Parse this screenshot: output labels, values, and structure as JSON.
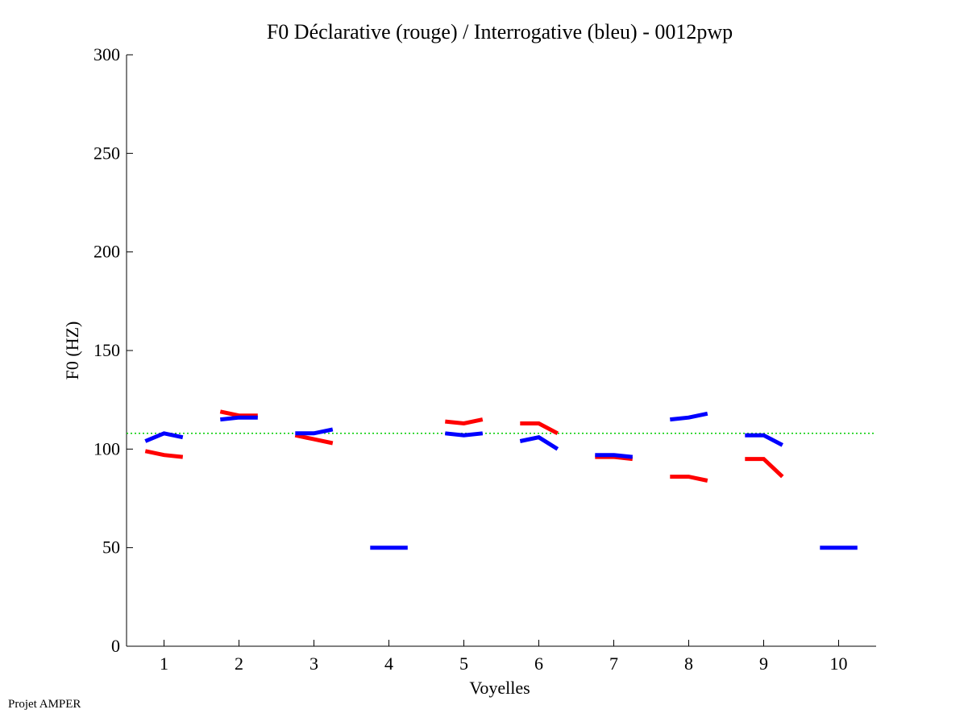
{
  "chart_data": {
    "type": "line",
    "title": "F0 Déclarative (rouge) / Interrogative (bleu) - 0012pwp",
    "xlabel": "Voyelles",
    "ylabel": "F0 (HZ)",
    "xlim": [
      0.5,
      10.5
    ],
    "ylim": [
      0,
      300
    ],
    "xticks": [
      1,
      2,
      3,
      4,
      5,
      6,
      7,
      8,
      9,
      10
    ],
    "yticks": [
      0,
      50,
      100,
      150,
      200,
      250,
      300
    ],
    "grid": false,
    "reference_line": {
      "y": 108,
      "color": "#00cc00",
      "style": "dotted"
    },
    "series": [
      {
        "color": "#ff0000",
        "segments": [
          {
            "vowel": 1,
            "values": [
              99,
              97,
              96
            ]
          },
          {
            "vowel": 2,
            "values": [
              119,
              117,
              117
            ]
          },
          {
            "vowel": 3,
            "values": [
              107,
              105,
              103
            ]
          },
          {
            "vowel": 5,
            "values": [
              114,
              113,
              115
            ]
          },
          {
            "vowel": 6,
            "values": [
              113,
              113,
              108
            ]
          },
          {
            "vowel": 7,
            "values": [
              96,
              96,
              95
            ]
          },
          {
            "vowel": 8,
            "values": [
              86,
              86,
              84
            ]
          },
          {
            "vowel": 9,
            "values": [
              95,
              95,
              86
            ]
          }
        ]
      },
      {
        "color": "#0000ff",
        "segments": [
          {
            "vowel": 1,
            "values": [
              104,
              108,
              106
            ]
          },
          {
            "vowel": 2,
            "values": [
              115,
              116,
              116
            ]
          },
          {
            "vowel": 3,
            "values": [
              108,
              108,
              110
            ]
          },
          {
            "vowel": 4,
            "values": [
              50,
              50,
              50
            ]
          },
          {
            "vowel": 5,
            "values": [
              108,
              107,
              108
            ]
          },
          {
            "vowel": 6,
            "values": [
              104,
              106,
              100
            ]
          },
          {
            "vowel": 7,
            "values": [
              97,
              97,
              96
            ]
          },
          {
            "vowel": 8,
            "values": [
              115,
              116,
              118
            ]
          },
          {
            "vowel": 9,
            "values": [
              107,
              107,
              102
            ]
          },
          {
            "vowel": 10,
            "values": [
              50,
              50,
              50
            ]
          }
        ]
      }
    ]
  },
  "footer": {
    "text": "Projet AMPER"
  }
}
